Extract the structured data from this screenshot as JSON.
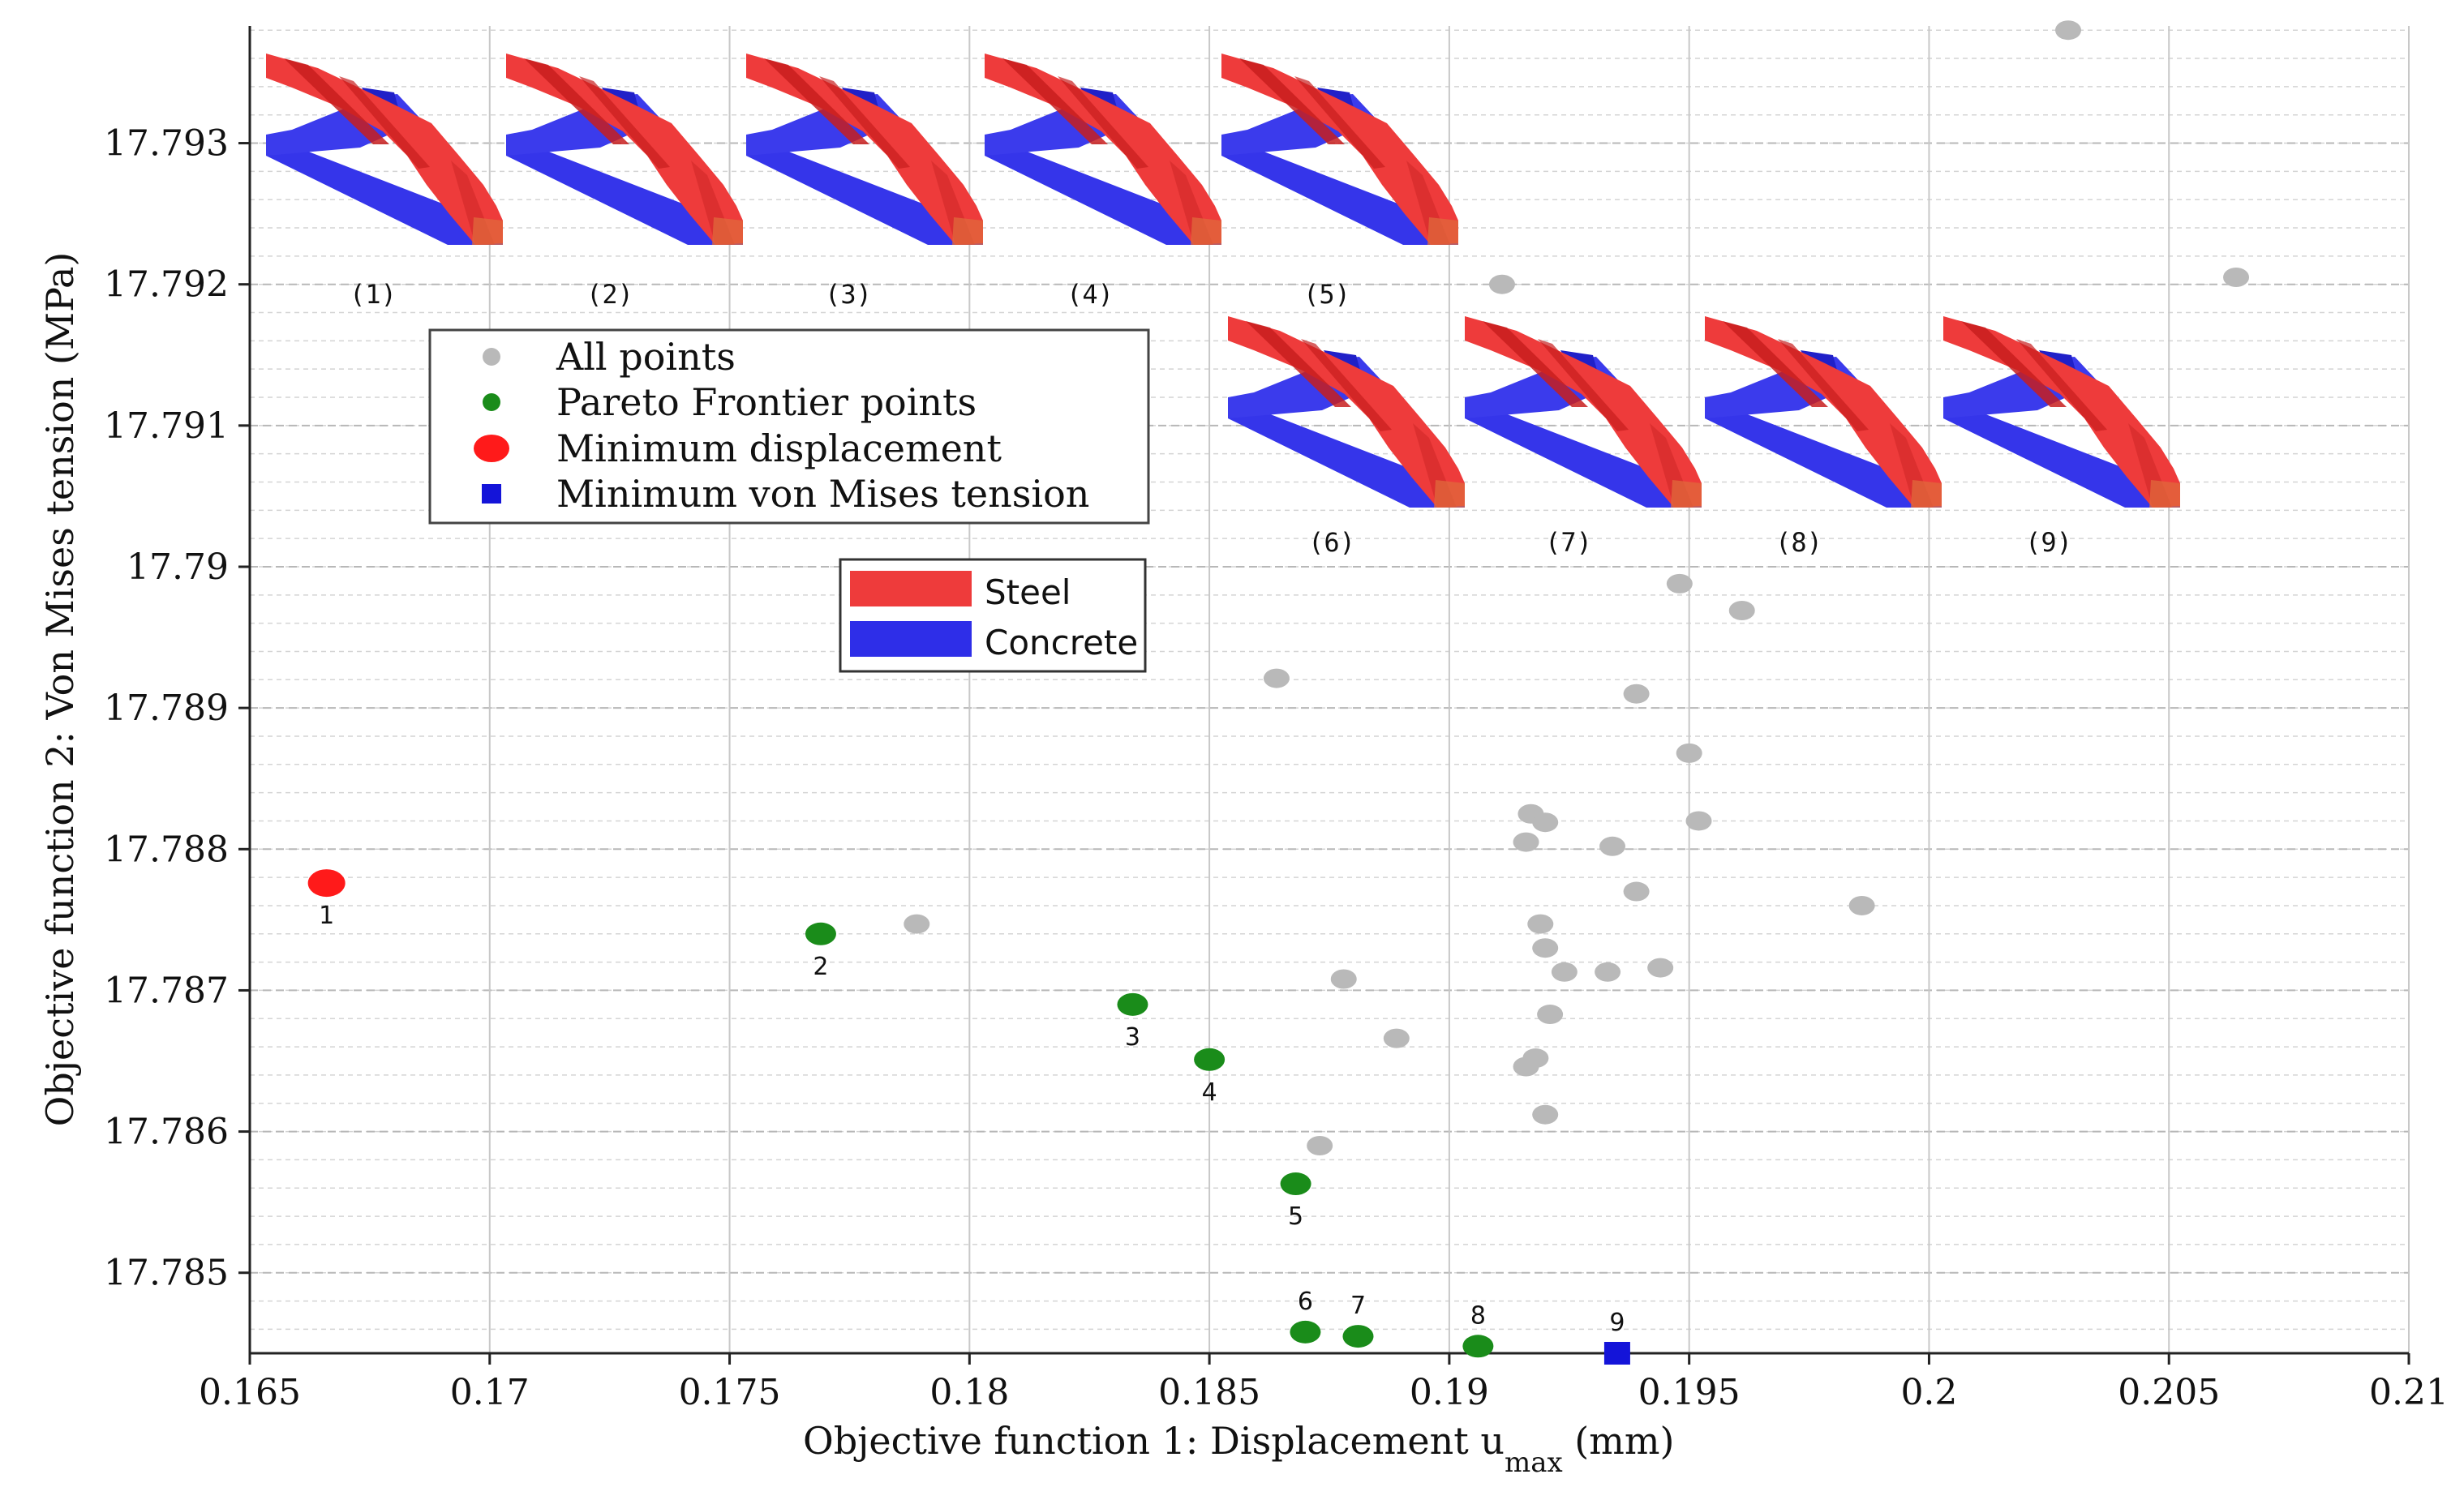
{
  "chart_data": {
    "type": "scatter",
    "xlabel": "Objective function 1: Displacement u",
    "xlabel_sub": "max",
    "xlabel_unit": " (mm)",
    "ylabel": "Objective function 2: Von Mises tension (MPa)",
    "xlim": [
      0.165,
      0.21
    ],
    "ylim": [
      17.78443,
      17.79383
    ],
    "x_ticks": [
      "0.165",
      "0.17",
      "0.175",
      "0.18",
      "0.185",
      "0.19",
      "0.195",
      "0.2",
      "0.205",
      "0.21"
    ],
    "y_ticks": [
      "17.785",
      "17.786",
      "17.787",
      "17.788",
      "17.789",
      "17.79",
      "17.791",
      "17.792",
      "17.793"
    ],
    "grid": true,
    "colors": {
      "all": "#b9b9b9",
      "pareto": "#1a8c1a",
      "min_disp": "#ff1a1a",
      "min_vm": "#1414d9",
      "steel": "#ee3b3b",
      "concrete": "#2e2ee8"
    },
    "series": [
      {
        "name": "All points",
        "marker": "circle",
        "points": [
          [
            0.1789,
            17.78747
          ],
          [
            0.1864,
            17.78921
          ],
          [
            0.1878,
            17.78708
          ],
          [
            0.1873,
            17.7859
          ],
          [
            0.1889,
            17.78666
          ],
          [
            0.1911,
            17.792
          ],
          [
            0.1917,
            17.78825
          ],
          [
            0.192,
            17.78819
          ],
          [
            0.1916,
            17.78805
          ],
          [
            0.1919,
            17.78747
          ],
          [
            0.192,
            17.7873
          ],
          [
            0.1924,
            17.78713
          ],
          [
            0.1921,
            17.78683
          ],
          [
            0.1918,
            17.78652
          ],
          [
            0.1916,
            17.78646
          ],
          [
            0.192,
            17.78612
          ],
          [
            0.1933,
            17.78713
          ],
          [
            0.1934,
            17.78802
          ],
          [
            0.1939,
            17.7877
          ],
          [
            0.1939,
            17.7891
          ],
          [
            0.1944,
            17.78716
          ],
          [
            0.1948,
            17.78988
          ],
          [
            0.195,
            17.78868
          ],
          [
            0.1952,
            17.7882
          ],
          [
            0.1961,
            17.78969
          ],
          [
            0.1986,
            17.7876
          ],
          [
            0.2029,
            17.7938
          ],
          [
            0.2064,
            17.79205
          ]
        ]
      },
      {
        "name": "Pareto Frontier points",
        "marker": "circle",
        "points": [
          [
            0.1769,
            17.7874
          ],
          [
            0.1834,
            17.7869
          ],
          [
            0.185,
            17.78651
          ],
          [
            0.1868,
            17.78563
          ],
          [
            0.187,
            17.78458
          ],
          [
            0.1881,
            17.78455
          ],
          [
            0.1906,
            17.78448
          ]
        ]
      },
      {
        "name": "Minimum displacement",
        "marker": "circle",
        "points": [
          [
            0.1666,
            17.78776
          ]
        ]
      },
      {
        "name": "Minimum von Mises tension",
        "marker": "square",
        "points": [
          [
            0.1935,
            17.78443
          ]
        ]
      }
    ],
    "point_labels": [
      {
        "text": "1",
        "x": 0.1666,
        "y": 17.78776
      },
      {
        "text": "2",
        "x": 0.1769,
        "y": 17.7874
      },
      {
        "text": "3",
        "x": 0.1834,
        "y": 17.7869
      },
      {
        "text": "4",
        "x": 0.185,
        "y": 17.78651
      },
      {
        "text": "5",
        "x": 0.1868,
        "y": 17.78563
      },
      {
        "text": "6",
        "x": 0.187,
        "y": 17.78458
      },
      {
        "text": "7",
        "x": 0.1881,
        "y": 17.78455
      },
      {
        "text": "8",
        "x": 0.1906,
        "y": 17.78448
      },
      {
        "text": "9",
        "x": 0.1935,
        "y": 17.78443
      }
    ],
    "legend_entries": [
      "All points",
      "Pareto Frontier points",
      "Minimum displacement",
      "Minimum von Mises tension"
    ],
    "material_legend": [
      "Steel",
      "Concrete"
    ],
    "thumbnail_labels": [
      "(1)",
      "(2)",
      "(3)",
      "(4)",
      "(5)",
      "(6)",
      "(7)",
      "(8)",
      "(9)"
    ]
  }
}
